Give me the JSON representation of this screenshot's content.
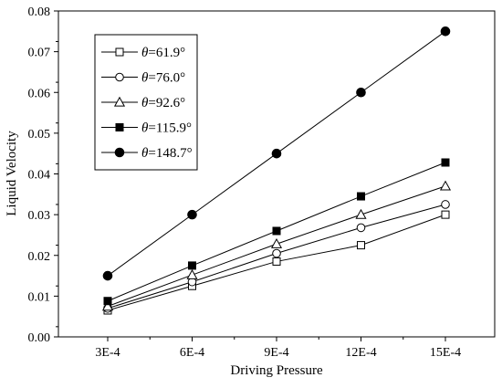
{
  "chart_data": {
    "type": "line",
    "xlabel": "Driving Pressure",
    "ylabel": "Liquid Velocity",
    "categories": [
      "3E-4",
      "6E-4",
      "9E-4",
      "12E-4",
      "15E-4"
    ],
    "ylim": [
      0.0,
      0.08
    ],
    "yticks": [
      "0.00",
      "0.01",
      "0.02",
      "0.03",
      "0.04",
      "0.05",
      "0.06",
      "0.07",
      "0.08"
    ],
    "grid": false,
    "legend_position": "top-left",
    "series": [
      {
        "name": "θ=61.9°",
        "theta_symbol": "θ",
        "theta_value": "=61.9°",
        "marker": "square-open",
        "values": [
          0.0065,
          0.0125,
          0.0185,
          0.0225,
          0.03
        ]
      },
      {
        "name": "θ=76.0°",
        "theta_symbol": "θ",
        "theta_value": "=76.0°",
        "marker": "circle-open",
        "values": [
          0.007,
          0.0135,
          0.0205,
          0.0268,
          0.0325
        ]
      },
      {
        "name": "θ=92.6°",
        "theta_symbol": "θ",
        "theta_value": "=92.6°",
        "marker": "triangle-open",
        "values": [
          0.0075,
          0.0152,
          0.0228,
          0.03,
          0.037
        ]
      },
      {
        "name": "θ=115.9°",
        "theta_symbol": "θ",
        "theta_value": "=115.9°",
        "marker": "square-filled",
        "values": [
          0.0088,
          0.0175,
          0.026,
          0.0345,
          0.0428
        ]
      },
      {
        "name": "θ=148.7°",
        "theta_symbol": "θ",
        "theta_value": "=148.7°",
        "marker": "circle-filled",
        "values": [
          0.015,
          0.03,
          0.045,
          0.06,
          0.075
        ]
      }
    ],
    "colors": {
      "line": "#000000",
      "background": "#ffffff"
    }
  }
}
